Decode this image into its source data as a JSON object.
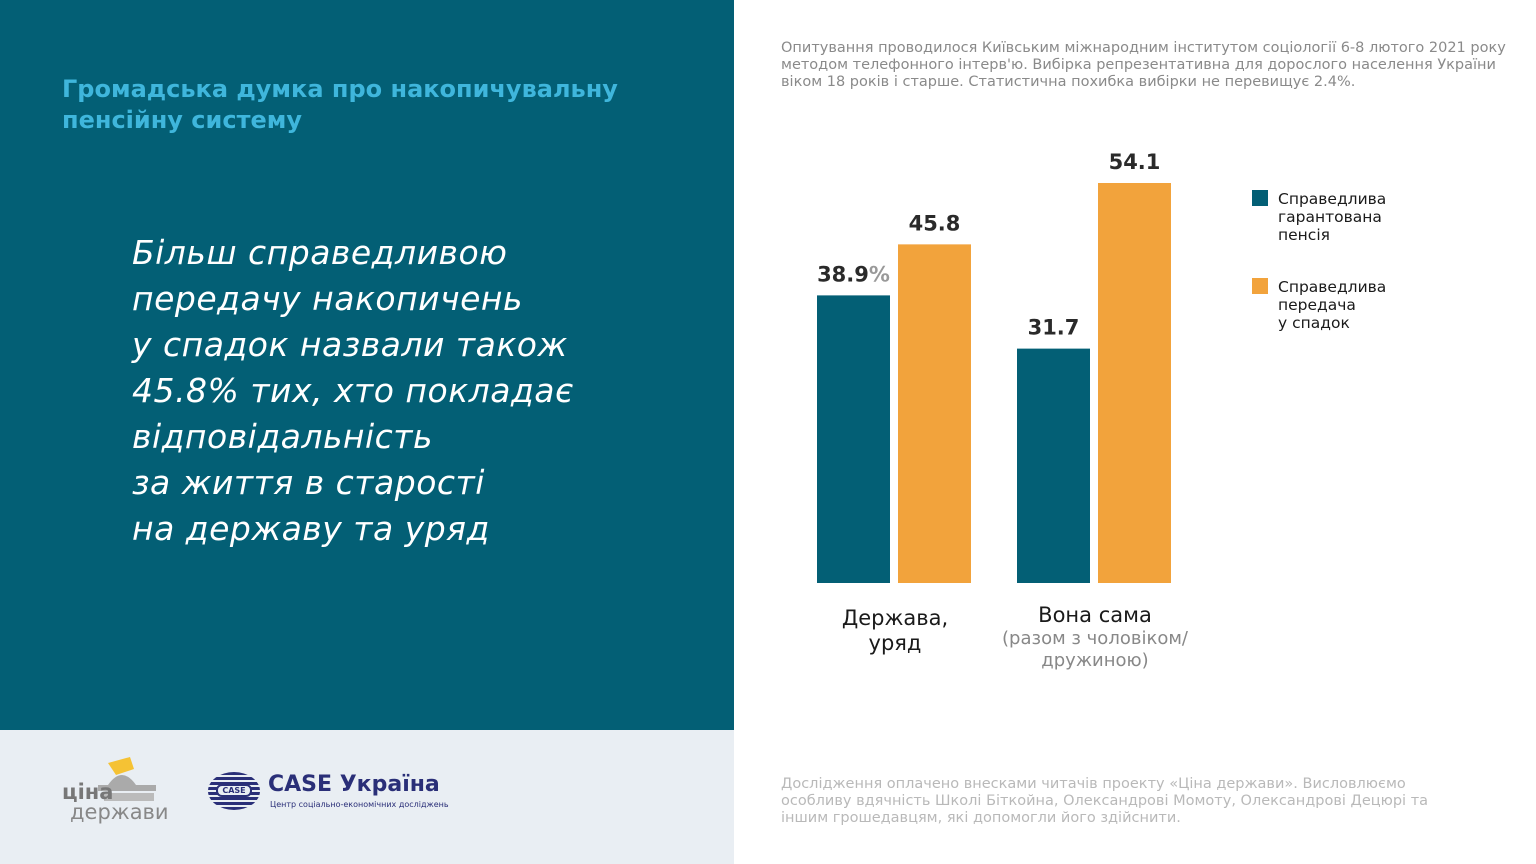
{
  "title": "Громадська думка про накопичувальну пенсійну систему",
  "quote": "Більш справедливою\nпередачу накопичень\nу спадок назвали також\n45.8% тих, хто покладає\nвідповідальність\nза життя в старості\nна державу та уряд",
  "note": "Опитування проводилося Київським міжнародним інститутом соціології 6-8 лютого 2021 року методом телефонного інтерв'ю. Вибірка репрезентативна для дорослого населення України віком 18 років і старше. Статистична похибка вибірки не перевищує 2.4%.",
  "credits": "Дослідження оплачено внесками читачів проекту «Ціна держави». Висловлюємо особливу вдячність Школі Біткойна, Олександрові Момоту, Олександрові Децюрі та іншим грошедавцям, які допомогли його здійснити.",
  "logos": {
    "cina_line1": "ціна",
    "cina_line2": "держави",
    "case_mark": "CASE",
    "case_name": "CASE Україна",
    "case_sub": "Центр соціально-економічних досліджень"
  },
  "chart_data": {
    "type": "bar",
    "categories": [
      "Держава, уряд",
      "Вона сама (разом з чоловіком/дружиною)"
    ],
    "category_labels": [
      {
        "main": "Держава,\nуряд",
        "sub": ""
      },
      {
        "main": "Вона сама",
        "sub": "(разом з чоловіком/\nдружиною)"
      }
    ],
    "series": [
      {
        "name": "Справедлива гарантована пенсія",
        "legend": "Справедлива\nгарантована\nпенсія",
        "color": "#035f75",
        "values": [
          38.9,
          31.7
        ],
        "labels": [
          "38.9",
          "31.7"
        ]
      },
      {
        "name": "Справедлива передача у спадок",
        "legend": "Справедлива\nпередача\nу спадок",
        "color": "#f2a33c",
        "values": [
          45.8,
          54.1
        ],
        "labels": [
          "45.8",
          "54.1"
        ]
      }
    ],
    "unit_suffix": "%",
    "ylim": [
      0,
      54.1
    ],
    "grid": false,
    "legend_position": "right"
  }
}
